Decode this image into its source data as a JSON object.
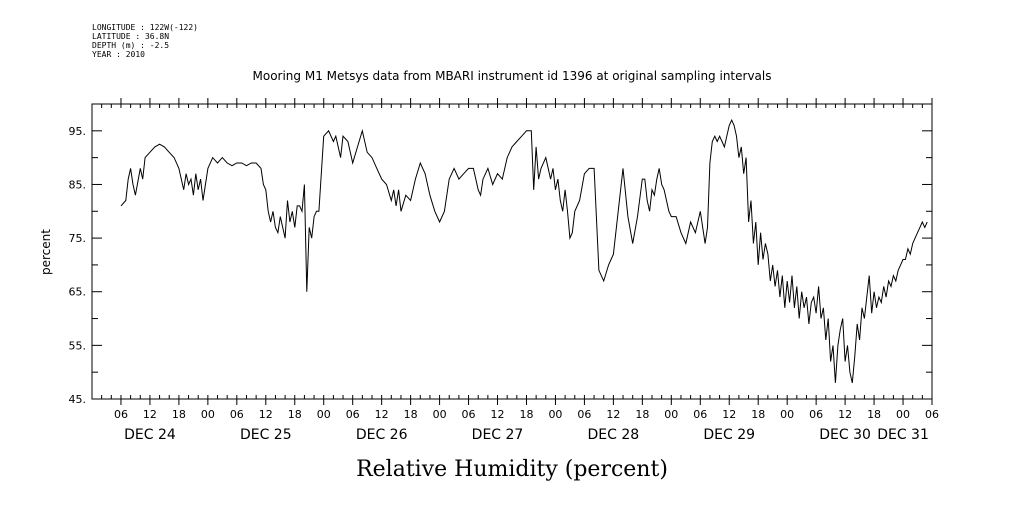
{
  "metadata": [
    "LONGITUDE : 122W(-122)",
    "LATITUDE : 36.8N",
    "DEPTH (m) : -2.5",
    "YEAR : 2010"
  ],
  "chart_data": {
    "type": "line",
    "title": "Mooring M1 Metsys data from MBARI instrument id 1396 at original sampling intervals",
    "xlabel": "Relative Humidity (percent)",
    "ylabel": "percent",
    "xlim": [
      0,
      174
    ],
    "ylim": [
      45,
      100
    ],
    "y_ticks": [
      45,
      55,
      65,
      75,
      85,
      95
    ],
    "y_tick_labels": [
      "45.",
      "55.",
      "65.",
      "75.",
      "85.",
      "95."
    ],
    "x_units": "hours since Dec 24 00:00",
    "x_hour_ticks": [
      {
        "x": 6,
        "label": "06"
      },
      {
        "x": 12,
        "label": "12"
      },
      {
        "x": 18,
        "label": "18"
      },
      {
        "x": 24,
        "label": "00"
      },
      {
        "x": 30,
        "label": "06"
      },
      {
        "x": 36,
        "label": "12"
      },
      {
        "x": 42,
        "label": "18"
      },
      {
        "x": 48,
        "label": "00"
      },
      {
        "x": 54,
        "label": "06"
      },
      {
        "x": 60,
        "label": "12"
      },
      {
        "x": 66,
        "label": "18"
      },
      {
        "x": 72,
        "label": "00"
      },
      {
        "x": 78,
        "label": "06"
      },
      {
        "x": 84,
        "label": "12"
      },
      {
        "x": 90,
        "label": "18"
      },
      {
        "x": 96,
        "label": "00"
      },
      {
        "x": 102,
        "label": "06"
      },
      {
        "x": 108,
        "label": "12"
      },
      {
        "x": 114,
        "label": "18"
      },
      {
        "x": 120,
        "label": "00"
      },
      {
        "x": 126,
        "label": "06"
      },
      {
        "x": 132,
        "label": "12"
      },
      {
        "x": 138,
        "label": "18"
      },
      {
        "x": 144,
        "label": "00"
      },
      {
        "x": 150,
        "label": "06"
      },
      {
        "x": 156,
        "label": "12"
      },
      {
        "x": 162,
        "label": "18"
      },
      {
        "x": 168,
        "label": "00"
      },
      {
        "x": 174,
        "label": "06"
      }
    ],
    "x_day_labels": [
      {
        "x": 12,
        "label": "DEC 24"
      },
      {
        "x": 36,
        "label": "DEC 25"
      },
      {
        "x": 60,
        "label": "DEC 26"
      },
      {
        "x": 84,
        "label": "DEC 27"
      },
      {
        "x": 108,
        "label": "DEC 28"
      },
      {
        "x": 132,
        "label": "DEC 29"
      },
      {
        "x": 156,
        "label": "DEC 30"
      },
      {
        "x": 168,
        "label": "DEC 31"
      }
    ],
    "grid": false,
    "series": [
      {
        "color": "#000000",
        "x": [
          6,
          7,
          7.5,
          8,
          8.5,
          9,
          10,
          10.5,
          11,
          12,
          13,
          14,
          15,
          16,
          17,
          18,
          18.5,
          19,
          19.5,
          20,
          20.5,
          21,
          21.5,
          22,
          22.5,
          23,
          24,
          25,
          26,
          27,
          28,
          29,
          30,
          31,
          32,
          33,
          34,
          35,
          35.5,
          36,
          36.5,
          37,
          37.5,
          38,
          38.5,
          39,
          39.5,
          40,
          40.5,
          41,
          41.5,
          42,
          42.5,
          43,
          43.5,
          44,
          44.5,
          45,
          45.5,
          46,
          46.5,
          47,
          48,
          49,
          50,
          50.5,
          51,
          51.5,
          52,
          53,
          54,
          55,
          56,
          57,
          58,
          59,
          60,
          61,
          62,
          62.5,
          63,
          63.5,
          64,
          65,
          66,
          67,
          68,
          69,
          70,
          71,
          72,
          73,
          74,
          75,
          76,
          77,
          78,
          79,
          79.5,
          80,
          80.5,
          81,
          82,
          83,
          84,
          85,
          86,
          87,
          88,
          89,
          90,
          91,
          91.5,
          92,
          92.5,
          93,
          94,
          95,
          95.5,
          96,
          96.5,
          97,
          97.5,
          98,
          98.5,
          99,
          99.5,
          100,
          101,
          102,
          103,
          104,
          105,
          106,
          107,
          108,
          109,
          110,
          111,
          112,
          113,
          114,
          114.5,
          115,
          115.5,
          116,
          116.5,
          117,
          117.5,
          118,
          118.5,
          119,
          119.5,
          120,
          121,
          122,
          123,
          124,
          125,
          126,
          127,
          127.5,
          128,
          128.5,
          129,
          129.5,
          130,
          130.5,
          131,
          131.5,
          132,
          132.5,
          133,
          133.5,
          134,
          134.5,
          135,
          135.5,
          136,
          136.5,
          137,
          137.5,
          138,
          138.5,
          139,
          139.5,
          140,
          140.5,
          141,
          141.5,
          142,
          142.5,
          143,
          143.5,
          144,
          144.5,
          145,
          145.5,
          146,
          146.5,
          147,
          147.5,
          148,
          148.5,
          149,
          149.5,
          150,
          150.5,
          151,
          151.5,
          152,
          152.5,
          153,
          153.5,
          154,
          154.5,
          155,
          155.5,
          156,
          156.5,
          157,
          157.5,
          158,
          158.5,
          159,
          159.5,
          160,
          160.5,
          161,
          161.5,
          162,
          162.5,
          163,
          163.5,
          164,
          164.5,
          165,
          165.5,
          166,
          166.5,
          167,
          167.5,
          168,
          168.5,
          169,
          169.5,
          170,
          170.5,
          171,
          171.5,
          172,
          172.5,
          173
        ],
        "y": [
          81,
          82,
          86,
          88,
          85,
          83,
          88,
          86,
          90,
          91,
          92,
          92.5,
          92,
          91,
          90,
          88,
          86,
          84,
          87,
          85,
          86,
          83,
          87,
          84,
          86,
          82,
          88,
          90,
          89,
          90,
          89,
          88.5,
          89,
          89,
          88.5,
          89,
          89,
          88,
          85,
          84,
          80,
          78,
          80,
          77,
          76,
          79,
          77,
          75,
          82,
          78,
          80,
          77,
          81,
          81,
          80,
          85,
          65,
          77,
          75,
          79,
          80,
          80,
          94,
          95,
          93,
          94,
          92,
          90,
          94,
          93,
          89,
          92,
          95,
          91,
          90,
          88,
          86,
          85,
          82,
          84,
          81,
          84,
          80,
          83,
          82,
          86,
          89,
          87,
          83,
          80,
          78,
          80,
          86,
          88,
          86,
          87,
          88,
          88,
          86,
          84,
          83,
          86,
          88,
          85,
          87,
          86,
          90,
          92,
          93,
          94,
          95,
          95,
          84,
          92,
          86,
          88,
          90,
          86,
          88,
          84,
          86,
          82,
          80,
          84,
          80,
          75,
          76,
          80,
          82,
          87,
          88,
          88,
          69,
          67,
          70,
          72,
          80,
          88,
          79,
          74,
          79,
          86,
          86,
          82,
          80,
          84,
          83,
          86,
          88,
          85,
          84,
          82,
          80,
          79,
          79,
          76,
          74,
          78,
          76,
          80,
          74,
          77,
          89,
          93,
          94,
          93,
          94,
          93,
          92,
          94,
          96,
          97,
          96,
          94,
          90,
          92,
          87,
          90,
          78,
          82,
          74,
          78,
          70,
          76,
          71,
          74,
          72,
          67,
          70,
          66,
          69,
          64,
          68,
          62,
          67,
          63,
          68,
          62,
          66,
          60,
          65,
          62,
          64,
          59,
          63,
          64,
          61,
          66,
          60,
          62,
          56,
          60,
          52,
          55,
          48,
          55,
          58,
          60,
          52,
          55,
          50,
          48,
          53,
          59,
          56,
          62,
          60,
          64,
          68,
          61,
          65,
          62,
          64,
          63,
          66,
          64,
          67,
          66,
          68,
          67,
          69,
          70,
          71,
          71,
          73,
          72,
          74,
          75,
          76,
          77,
          78,
          77,
          78
        ]
      }
    ]
  }
}
